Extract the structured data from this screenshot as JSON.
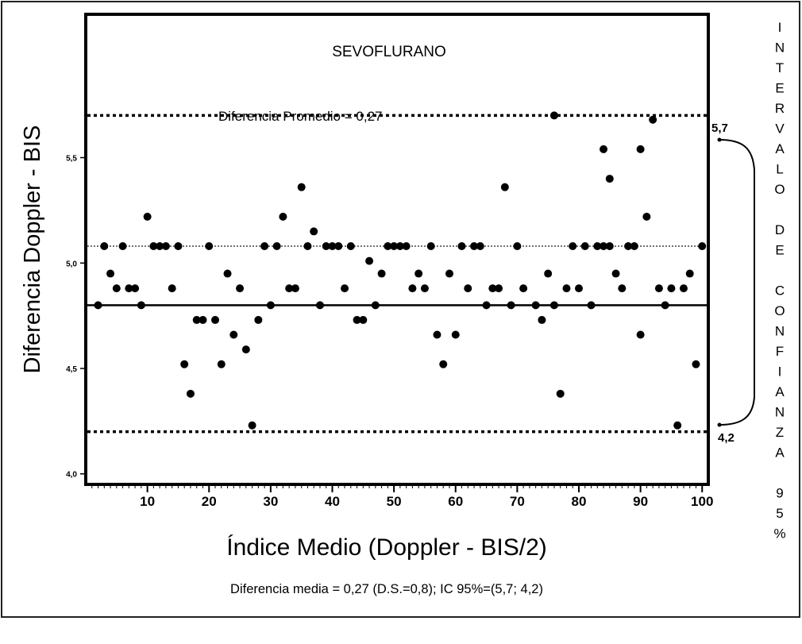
{
  "chart_data": {
    "type": "scatter",
    "title": "SEVOFLURANO",
    "xlabel": "Índice Medio (Doppler - BIS/2)",
    "ylabel": "Diferencia Doppler - BIS",
    "xlim": [
      0,
      101
    ],
    "ylim": [
      3.95,
      6.18
    ],
    "x_ticks": [
      10,
      20,
      30,
      40,
      50,
      60,
      70,
      80,
      90,
      100
    ],
    "x_tick_labels": [
      "10",
      "20",
      "30",
      "40",
      "50",
      "60",
      "70",
      "80",
      "90",
      "100"
    ],
    "y_ticks": [
      4.0,
      4.5,
      5.0,
      5.5
    ],
    "y_tick_labels": [
      "4,0",
      "4,5",
      "5,0",
      "5,5"
    ],
    "grid": false,
    "reference_lines": {
      "upper_limit": 5.7,
      "upper_limit_label": "5,7",
      "lower_limit": 4.2,
      "lower_limit_label": "4,2",
      "mean_dotted": 5.08,
      "mean_solid": 4.8
    },
    "annotation_mean": "Diferencia Promedio = 0,27",
    "confidence_interval_label": [
      "I",
      "N",
      "T",
      "E",
      "R",
      "V",
      "A",
      "L",
      "O",
      "",
      "D",
      "E",
      "",
      "C",
      "O",
      "N",
      "F",
      "I",
      "A",
      "N",
      "Z",
      "A",
      "",
      "9",
      "5",
      "%"
    ],
    "caption": "Diferencia media = 0,27 (D.S.=0,8); IC 95%=(5,7; 4,2)",
    "points": [
      {
        "x": 2,
        "y": 4.8
      },
      {
        "x": 3,
        "y": 5.08
      },
      {
        "x": 4,
        "y": 4.95
      },
      {
        "x": 5,
        "y": 4.88
      },
      {
        "x": 6,
        "y": 5.08
      },
      {
        "x": 7,
        "y": 4.88
      },
      {
        "x": 8,
        "y": 4.88
      },
      {
        "x": 9,
        "y": 4.8
      },
      {
        "x": 10,
        "y": 5.22
      },
      {
        "x": 11,
        "y": 5.08
      },
      {
        "x": 12,
        "y": 5.08
      },
      {
        "x": 13,
        "y": 5.08
      },
      {
        "x": 14,
        "y": 4.88
      },
      {
        "x": 15,
        "y": 5.08
      },
      {
        "x": 16,
        "y": 4.52
      },
      {
        "x": 17,
        "y": 4.38
      },
      {
        "x": 18,
        "y": 4.73
      },
      {
        "x": 19,
        "y": 4.73
      },
      {
        "x": 20,
        "y": 5.08
      },
      {
        "x": 21,
        "y": 4.73
      },
      {
        "x": 22,
        "y": 4.52
      },
      {
        "x": 23,
        "y": 4.95
      },
      {
        "x": 24,
        "y": 4.66
      },
      {
        "x": 25,
        "y": 4.88
      },
      {
        "x": 26,
        "y": 4.59
      },
      {
        "x": 27,
        "y": 4.23
      },
      {
        "x": 28,
        "y": 4.73
      },
      {
        "x": 29,
        "y": 5.08
      },
      {
        "x": 30,
        "y": 4.8
      },
      {
        "x": 31,
        "y": 5.08
      },
      {
        "x": 32,
        "y": 5.22
      },
      {
        "x": 33,
        "y": 4.88
      },
      {
        "x": 34,
        "y": 4.88
      },
      {
        "x": 35,
        "y": 5.36
      },
      {
        "x": 36,
        "y": 5.08
      },
      {
        "x": 37,
        "y": 5.15
      },
      {
        "x": 38,
        "y": 4.8
      },
      {
        "x": 39,
        "y": 5.08
      },
      {
        "x": 40,
        "y": 5.08
      },
      {
        "x": 41,
        "y": 5.08
      },
      {
        "x": 42,
        "y": 4.88
      },
      {
        "x": 43,
        "y": 5.08
      },
      {
        "x": 44,
        "y": 4.73
      },
      {
        "x": 45,
        "y": 4.73
      },
      {
        "x": 46,
        "y": 5.01
      },
      {
        "x": 47,
        "y": 4.8
      },
      {
        "x": 48,
        "y": 4.95
      },
      {
        "x": 49,
        "y": 5.08
      },
      {
        "x": 50,
        "y": 5.08
      },
      {
        "x": 51,
        "y": 5.08
      },
      {
        "x": 52,
        "y": 5.08
      },
      {
        "x": 53,
        "y": 4.88
      },
      {
        "x": 54,
        "y": 4.95
      },
      {
        "x": 55,
        "y": 4.88
      },
      {
        "x": 56,
        "y": 5.08
      },
      {
        "x": 57,
        "y": 4.66
      },
      {
        "x": 58,
        "y": 4.52
      },
      {
        "x": 59,
        "y": 4.95
      },
      {
        "x": 60,
        "y": 4.66
      },
      {
        "x": 61,
        "y": 5.08
      },
      {
        "x": 62,
        "y": 4.88
      },
      {
        "x": 63,
        "y": 5.08
      },
      {
        "x": 64,
        "y": 5.08
      },
      {
        "x": 65,
        "y": 4.8
      },
      {
        "x": 66,
        "y": 4.88
      },
      {
        "x": 67,
        "y": 4.88
      },
      {
        "x": 68,
        "y": 5.36
      },
      {
        "x": 69,
        "y": 4.8
      },
      {
        "x": 70,
        "y": 5.08
      },
      {
        "x": 71,
        "y": 4.88
      },
      {
        "x": 73,
        "y": 4.8
      },
      {
        "x": 74,
        "y": 4.73
      },
      {
        "x": 75,
        "y": 4.95
      },
      {
        "x": 76,
        "y": 5.7
      },
      {
        "x": 76,
        "y": 4.8
      },
      {
        "x": 77,
        "y": 4.38
      },
      {
        "x": 78,
        "y": 4.88
      },
      {
        "x": 79,
        "y": 5.08
      },
      {
        "x": 80,
        "y": 4.88
      },
      {
        "x": 81,
        "y": 5.08
      },
      {
        "x": 82,
        "y": 4.8
      },
      {
        "x": 83,
        "y": 5.08
      },
      {
        "x": 84,
        "y": 5.54
      },
      {
        "x": 84,
        "y": 5.08
      },
      {
        "x": 85,
        "y": 5.4
      },
      {
        "x": 85,
        "y": 5.08
      },
      {
        "x": 86,
        "y": 4.95
      },
      {
        "x": 87,
        "y": 4.88
      },
      {
        "x": 88,
        "y": 5.08
      },
      {
        "x": 89,
        "y": 5.08
      },
      {
        "x": 90,
        "y": 5.54
      },
      {
        "x": 90,
        "y": 4.66
      },
      {
        "x": 91,
        "y": 5.22
      },
      {
        "x": 92,
        "y": 5.68
      },
      {
        "x": 93,
        "y": 4.88
      },
      {
        "x": 94,
        "y": 4.8
      },
      {
        "x": 95,
        "y": 4.88
      },
      {
        "x": 96,
        "y": 4.23
      },
      {
        "x": 97,
        "y": 4.88
      },
      {
        "x": 98,
        "y": 4.95
      },
      {
        "x": 99,
        "y": 4.52
      },
      {
        "x": 100,
        "y": 5.08
      }
    ]
  }
}
